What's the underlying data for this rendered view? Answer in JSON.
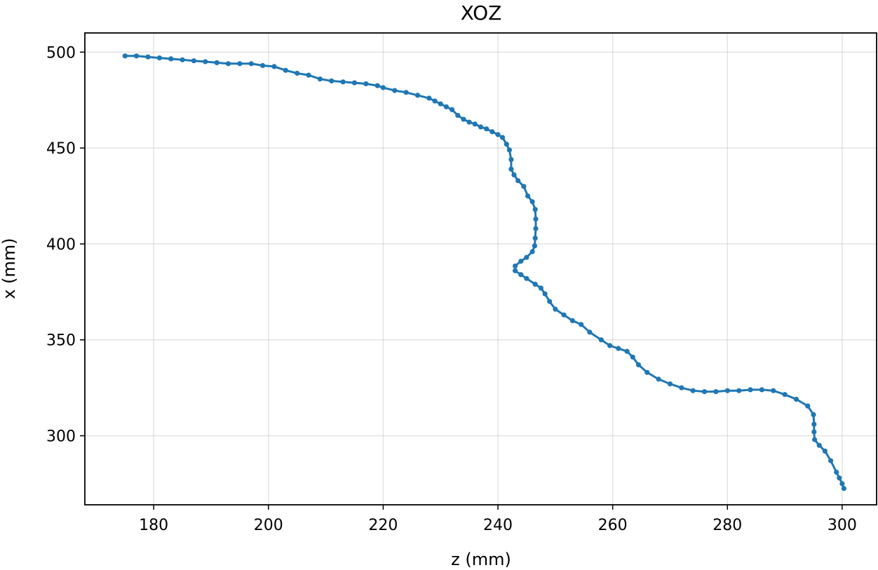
{
  "chart_data": {
    "type": "line",
    "title": "XOZ",
    "xlabel": "z (mm)",
    "ylabel": "x (mm)",
    "xlim": [
      168,
      306
    ],
    "ylim": [
      264,
      510
    ],
    "xticks": [
      180,
      200,
      220,
      240,
      260,
      280,
      300
    ],
    "yticks": [
      300,
      350,
      400,
      450,
      500
    ],
    "grid": true,
    "marker": "circle",
    "series_color": "#1f77b4",
    "series": [
      {
        "name": "",
        "points": [
          [
            175,
            498
          ],
          [
            177,
            498
          ],
          [
            179,
            497.5
          ],
          [
            181,
            497
          ],
          [
            183,
            496.5
          ],
          [
            185,
            496
          ],
          [
            187,
            495.5
          ],
          [
            189,
            495
          ],
          [
            191,
            494.5
          ],
          [
            193,
            494
          ],
          [
            195,
            494
          ],
          [
            197,
            494
          ],
          [
            199,
            493
          ],
          [
            201,
            492.5
          ],
          [
            203,
            490.5
          ],
          [
            205,
            489
          ],
          [
            207,
            488
          ],
          [
            209,
            486
          ],
          [
            211,
            485
          ],
          [
            213,
            484.5
          ],
          [
            215,
            484
          ],
          [
            217,
            483.5
          ],
          [
            219,
            482.5
          ],
          [
            220,
            481.5
          ],
          [
            222,
            480
          ],
          [
            224,
            479
          ],
          [
            226,
            477.5
          ],
          [
            228,
            476
          ],
          [
            229,
            474.5
          ],
          [
            230,
            473
          ],
          [
            231,
            471.5
          ],
          [
            232,
            470
          ],
          [
            233,
            467
          ],
          [
            234,
            465
          ],
          [
            235,
            463.5
          ],
          [
            236,
            462.5
          ],
          [
            237,
            461
          ],
          [
            238,
            460
          ],
          [
            239,
            458.5
          ],
          [
            240,
            457
          ],
          [
            240.8,
            455.5
          ],
          [
            241.5,
            452
          ],
          [
            242,
            449
          ],
          [
            242.3,
            444
          ],
          [
            242.3,
            439
          ],
          [
            242.8,
            436
          ],
          [
            243.5,
            433
          ],
          [
            244.5,
            430
          ],
          [
            245.2,
            425
          ],
          [
            246,
            422
          ],
          [
            246.5,
            418
          ],
          [
            246.6,
            413
          ],
          [
            246.6,
            408
          ],
          [
            246.5,
            403
          ],
          [
            246.4,
            399
          ],
          [
            246,
            396
          ],
          [
            245,
            393
          ],
          [
            244,
            391
          ],
          [
            243,
            388.5
          ],
          [
            243,
            386
          ],
          [
            244,
            384
          ],
          [
            245,
            382
          ],
          [
            246.5,
            379
          ],
          [
            247.5,
            377
          ],
          [
            248.2,
            374
          ],
          [
            249,
            370
          ],
          [
            250,
            366
          ],
          [
            251.5,
            363
          ],
          [
            253,
            360
          ],
          [
            254.5,
            358
          ],
          [
            256,
            354
          ],
          [
            258,
            350
          ],
          [
            259.5,
            347
          ],
          [
            261,
            345.5
          ],
          [
            262.5,
            344
          ],
          [
            263.5,
            341
          ],
          [
            264.5,
            337
          ],
          [
            266,
            333
          ],
          [
            268,
            329.5
          ],
          [
            270,
            327
          ],
          [
            272,
            325
          ],
          [
            274,
            323.5
          ],
          [
            276,
            323
          ],
          [
            278,
            323
          ],
          [
            280,
            323.5
          ],
          [
            282,
            323.5
          ],
          [
            284,
            324
          ],
          [
            286,
            324
          ],
          [
            288,
            323.5
          ],
          [
            290,
            321.5
          ],
          [
            292,
            319
          ],
          [
            294,
            315.5
          ],
          [
            295,
            311
          ],
          [
            295.1,
            306
          ],
          [
            295.1,
            302
          ],
          [
            295.2,
            298
          ],
          [
            296,
            295
          ],
          [
            297,
            292
          ],
          [
            298,
            287
          ],
          [
            299,
            281
          ],
          [
            299.5,
            278
          ],
          [
            300,
            275
          ],
          [
            300.3,
            272.5
          ]
        ]
      }
    ]
  }
}
